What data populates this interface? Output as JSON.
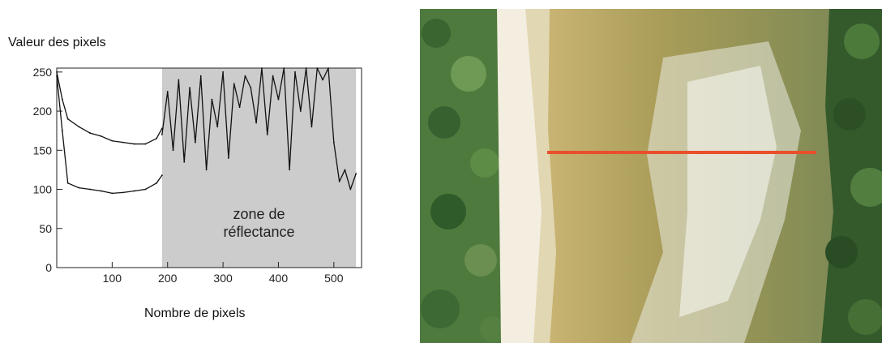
{
  "chart_data": {
    "type": "line",
    "ylabel": "Valeur des pixels",
    "xlabel": "Nombre de pixels",
    "xlim": [
      0,
      550
    ],
    "ylim": [
      0,
      255
    ],
    "x_ticks": [
      100,
      200,
      300,
      400,
      500
    ],
    "y_ticks": [
      0,
      50,
      100,
      150,
      200,
      250
    ],
    "annotation": {
      "lines": [
        "zone de",
        "réflectance"
      ],
      "x_range": [
        190,
        540
      ]
    },
    "shaded_region": {
      "x_start": 190,
      "x_end": 540,
      "color": "#cccccc"
    },
    "series": [
      {
        "x": [
          0,
          10,
          20,
          40,
          60,
          80,
          100,
          120,
          140,
          160,
          180,
          190
        ],
        "y": [
          250,
          215,
          190,
          180,
          172,
          168,
          162,
          160,
          158,
          158,
          165,
          178
        ]
      },
      {
        "x": [
          0,
          10,
          20,
          40,
          60,
          80,
          100,
          120,
          140,
          160,
          180,
          190
        ],
        "y": [
          245,
          175,
          108,
          102,
          100,
          98,
          95,
          96,
          98,
          100,
          108,
          118
        ]
      },
      {
        "x": [
          190,
          200,
          210,
          220,
          230,
          240,
          250,
          260,
          270,
          280,
          290,
          300,
          310,
          320,
          330,
          340,
          350,
          360,
          370,
          380,
          390,
          400,
          410,
          420,
          430,
          440,
          450,
          460,
          470,
          480,
          490,
          500,
          510,
          520,
          530,
          540
        ],
        "y": [
          170,
          225,
          150,
          240,
          135,
          230,
          160,
          245,
          125,
          215,
          180,
          250,
          140,
          235,
          205,
          245,
          230,
          185,
          255,
          170,
          245,
          215,
          255,
          125,
          250,
          200,
          255,
          180,
          255,
          240,
          255,
          160,
          110,
          125,
          100,
          120
        ]
      }
    ]
  },
  "photo": {
    "transect_color": "#ea4f2b",
    "vegetation_color": "#3f6a33",
    "sand_color": "#f1ead6",
    "water_color": "#a99b55"
  }
}
